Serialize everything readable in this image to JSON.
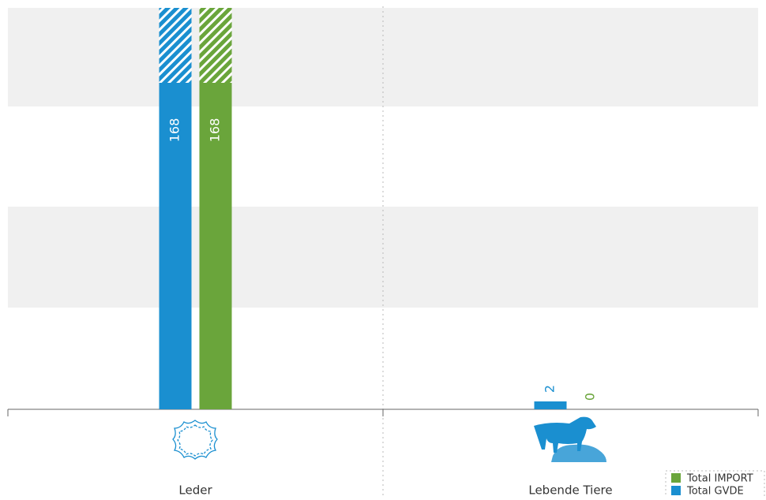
{
  "chart_data": {
    "type": "bar",
    "categories": [
      "Leder",
      "Lebende Tiere"
    ],
    "series": [
      {
        "name": "Total GVDE",
        "color": "#1a8fd0",
        "values": [
          168,
          2
        ]
      },
      {
        "name": "Total IMPORT",
        "color": "#6aa53b",
        "values": [
          168,
          0
        ]
      }
    ]
  }
}
